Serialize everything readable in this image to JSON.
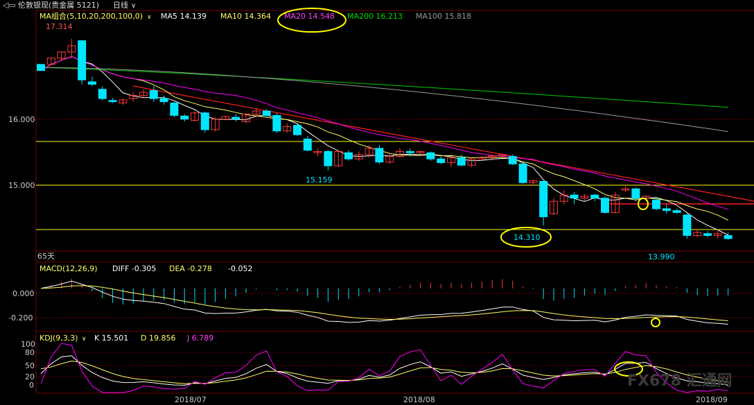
{
  "header": {
    "instrument": "伦敦银现(贵金属 5121)",
    "period": "日线",
    "chevron_icon": "chevron-down-icon",
    "back_icon": "back-arrow-icon"
  },
  "colors": {
    "bg": "#000000",
    "up": "#ff3b3b",
    "down": "#00e5ff",
    "ma5": "#ffffff",
    "ma10": "#ffff66",
    "ma20": "#ff00ff",
    "ma200": "#00cc00",
    "ma100": "#9a9a9a",
    "red_line": "#ff2020",
    "hline": "#ffff00",
    "grid": "#7a0000",
    "axis_text": "#cccccc",
    "annot": "#ffff00"
  },
  "main_panel": {
    "ma_legend": [
      {
        "label": "MA组合(5,10,20,200,100,0)",
        "color": "#ffff66"
      },
      {
        "label": "MA5 14.139",
        "color": "#ffffff"
      },
      {
        "label": "MA10 14.364",
        "color": "#ffff66"
      },
      {
        "label": "MA20 14.548",
        "color": "#ff44ff"
      },
      {
        "label": "MA200 16.213",
        "color": "#00dd00"
      },
      {
        "label": "MA100 15.818",
        "color": "#9a9a9a"
      }
    ],
    "y_ticks": [
      "16.000",
      "15.000"
    ],
    "price_labels": {
      "high": "17.314",
      "low1": "15.159",
      "low2": "14.310",
      "low3": "13.990"
    },
    "bottom_label": "65天"
  },
  "macd_panel": {
    "legend": [
      {
        "label": "MACD(12,26,9)",
        "color": "#ffff66"
      },
      {
        "label": "DIFF -0.305",
        "color": "#ffffff"
      },
      {
        "label": "DEA -0.278",
        "color": "#ffff66"
      },
      {
        "label": "-0.052",
        "color": "#ffffff"
      }
    ],
    "y_ticks": [
      "0.000",
      "-0.200"
    ]
  },
  "kdj_panel": {
    "legend": [
      {
        "label": "KDJ(9,3,3)",
        "color": "#ffff66"
      },
      {
        "label": "K 15.501",
        "color": "#ffffff"
      },
      {
        "label": "D 19.856",
        "color": "#ffff66"
      },
      {
        "label": "J 6.789",
        "color": "#ff44ff"
      }
    ],
    "y_ticks": [
      "100",
      "80",
      "50",
      "20",
      "0"
    ]
  },
  "x_axis": [
    "2018/07",
    "2018/08",
    "2018/09"
  ],
  "watermark": "FX678 汇通网",
  "chart_data": {
    "type": "candlestick",
    "series": [
      {
        "name": "MA5",
        "last": 14.139
      },
      {
        "name": "MA10",
        "last": 14.364
      },
      {
        "name": "MA20",
        "last": 14.548
      },
      {
        "name": "MA200",
        "last": 16.213
      },
      {
        "name": "MA100",
        "last": 15.818
      }
    ],
    "ohlc": [
      [
        16.9,
        16.9,
        16.8,
        16.8
      ],
      [
        16.9,
        17.0,
        16.9,
        17.0
      ],
      [
        17.0,
        17.1,
        16.95,
        17.1
      ],
      [
        17.1,
        17.31,
        17.0,
        17.2
      ],
      [
        17.28,
        17.29,
        16.58,
        16.65
      ],
      [
        16.62,
        16.7,
        16.55,
        16.58
      ],
      [
        16.5,
        16.55,
        16.32,
        16.35
      ],
      [
        16.32,
        16.36,
        16.28,
        16.3
      ],
      [
        16.28,
        16.35,
        16.25,
        16.33
      ],
      [
        16.35,
        16.45,
        16.3,
        16.4
      ],
      [
        16.4,
        16.5,
        16.35,
        16.45
      ],
      [
        16.48,
        16.55,
        16.3,
        16.35
      ],
      [
        16.35,
        16.4,
        16.25,
        16.3
      ],
      [
        16.28,
        16.3,
        16.05,
        16.08
      ],
      [
        16.07,
        16.1,
        15.98,
        16.02
      ],
      [
        16.0,
        16.15,
        15.98,
        16.12
      ],
      [
        16.12,
        16.14,
        15.8,
        15.85
      ],
      [
        15.85,
        16.05,
        15.82,
        16.02
      ],
      [
        16.02,
        16.08,
        16.0,
        16.06
      ],
      [
        16.05,
        16.1,
        15.98,
        16.02
      ],
      [
        15.98,
        16.12,
        15.95,
        16.1
      ],
      [
        16.1,
        16.2,
        16.05,
        16.15
      ],
      [
        16.15,
        16.18,
        16.05,
        16.08
      ],
      [
        16.08,
        16.12,
        15.8,
        15.83
      ],
      [
        15.83,
        15.95,
        15.8,
        15.9
      ],
      [
        15.92,
        15.94,
        15.75,
        15.77
      ],
      [
        15.7,
        15.75,
        15.5,
        15.52
      ],
      [
        15.48,
        15.55,
        15.42,
        15.5
      ],
      [
        15.5,
        15.52,
        15.2,
        15.27
      ],
      [
        15.27,
        15.52,
        15.25,
        15.5
      ],
      [
        15.48,
        15.52,
        15.35,
        15.38
      ],
      [
        15.38,
        15.5,
        15.35,
        15.45
      ],
      [
        15.45,
        15.6,
        15.4,
        15.55
      ],
      [
        15.55,
        15.6,
        15.3,
        15.33
      ],
      [
        15.33,
        15.45,
        15.3,
        15.42
      ],
      [
        15.42,
        15.55,
        15.4,
        15.5
      ],
      [
        15.5,
        15.55,
        15.42,
        15.48
      ],
      [
        15.48,
        15.52,
        15.45,
        15.5
      ],
      [
        15.48,
        15.5,
        15.35,
        15.38
      ],
      [
        15.38,
        15.42,
        15.3,
        15.32
      ],
      [
        15.32,
        15.42,
        15.25,
        15.4
      ],
      [
        15.4,
        15.45,
        15.26,
        15.28
      ],
      [
        15.28,
        15.4,
        15.25,
        15.38
      ],
      [
        15.38,
        15.42,
        15.35,
        15.4
      ],
      [
        15.4,
        15.45,
        15.35,
        15.43
      ],
      [
        15.43,
        15.47,
        15.4,
        15.45
      ],
      [
        15.42,
        15.45,
        15.28,
        15.3
      ],
      [
        15.3,
        15.32,
        14.98,
        15.0
      ],
      [
        15.0,
        15.05,
        14.95,
        15.03
      ],
      [
        15.02,
        15.03,
        14.31,
        14.45
      ],
      [
        14.5,
        14.75,
        14.48,
        14.7
      ],
      [
        14.7,
        14.88,
        14.65,
        14.8
      ],
      [
        14.8,
        14.85,
        14.65,
        14.75
      ],
      [
        14.75,
        14.82,
        14.7,
        14.78
      ],
      [
        14.8,
        14.82,
        14.7,
        14.75
      ],
      [
        14.75,
        14.78,
        14.5,
        14.52
      ],
      [
        14.52,
        14.85,
        14.5,
        14.8
      ],
      [
        14.88,
        14.95,
        14.85,
        14.9
      ],
      [
        14.9,
        14.92,
        14.7,
        14.75
      ],
      [
        14.75,
        14.8,
        14.7,
        14.78
      ],
      [
        14.72,
        14.75,
        14.55,
        14.58
      ],
      [
        14.58,
        14.65,
        14.5,
        14.55
      ],
      [
        14.55,
        14.58,
        14.5,
        14.52
      ],
      [
        14.48,
        14.5,
        14.1,
        14.15
      ],
      [
        14.15,
        14.25,
        14.12,
        14.2
      ],
      [
        14.18,
        14.22,
        14.12,
        14.15
      ],
      [
        14.15,
        14.25,
        14.1,
        14.18
      ],
      [
        14.15,
        14.2,
        14.08,
        14.1
      ]
    ],
    "price_range": [
      13.9,
      17.6
    ],
    "macd_range": [
      -0.36,
      0.12
    ],
    "kdj_range": [
      -8,
      105
    ]
  }
}
